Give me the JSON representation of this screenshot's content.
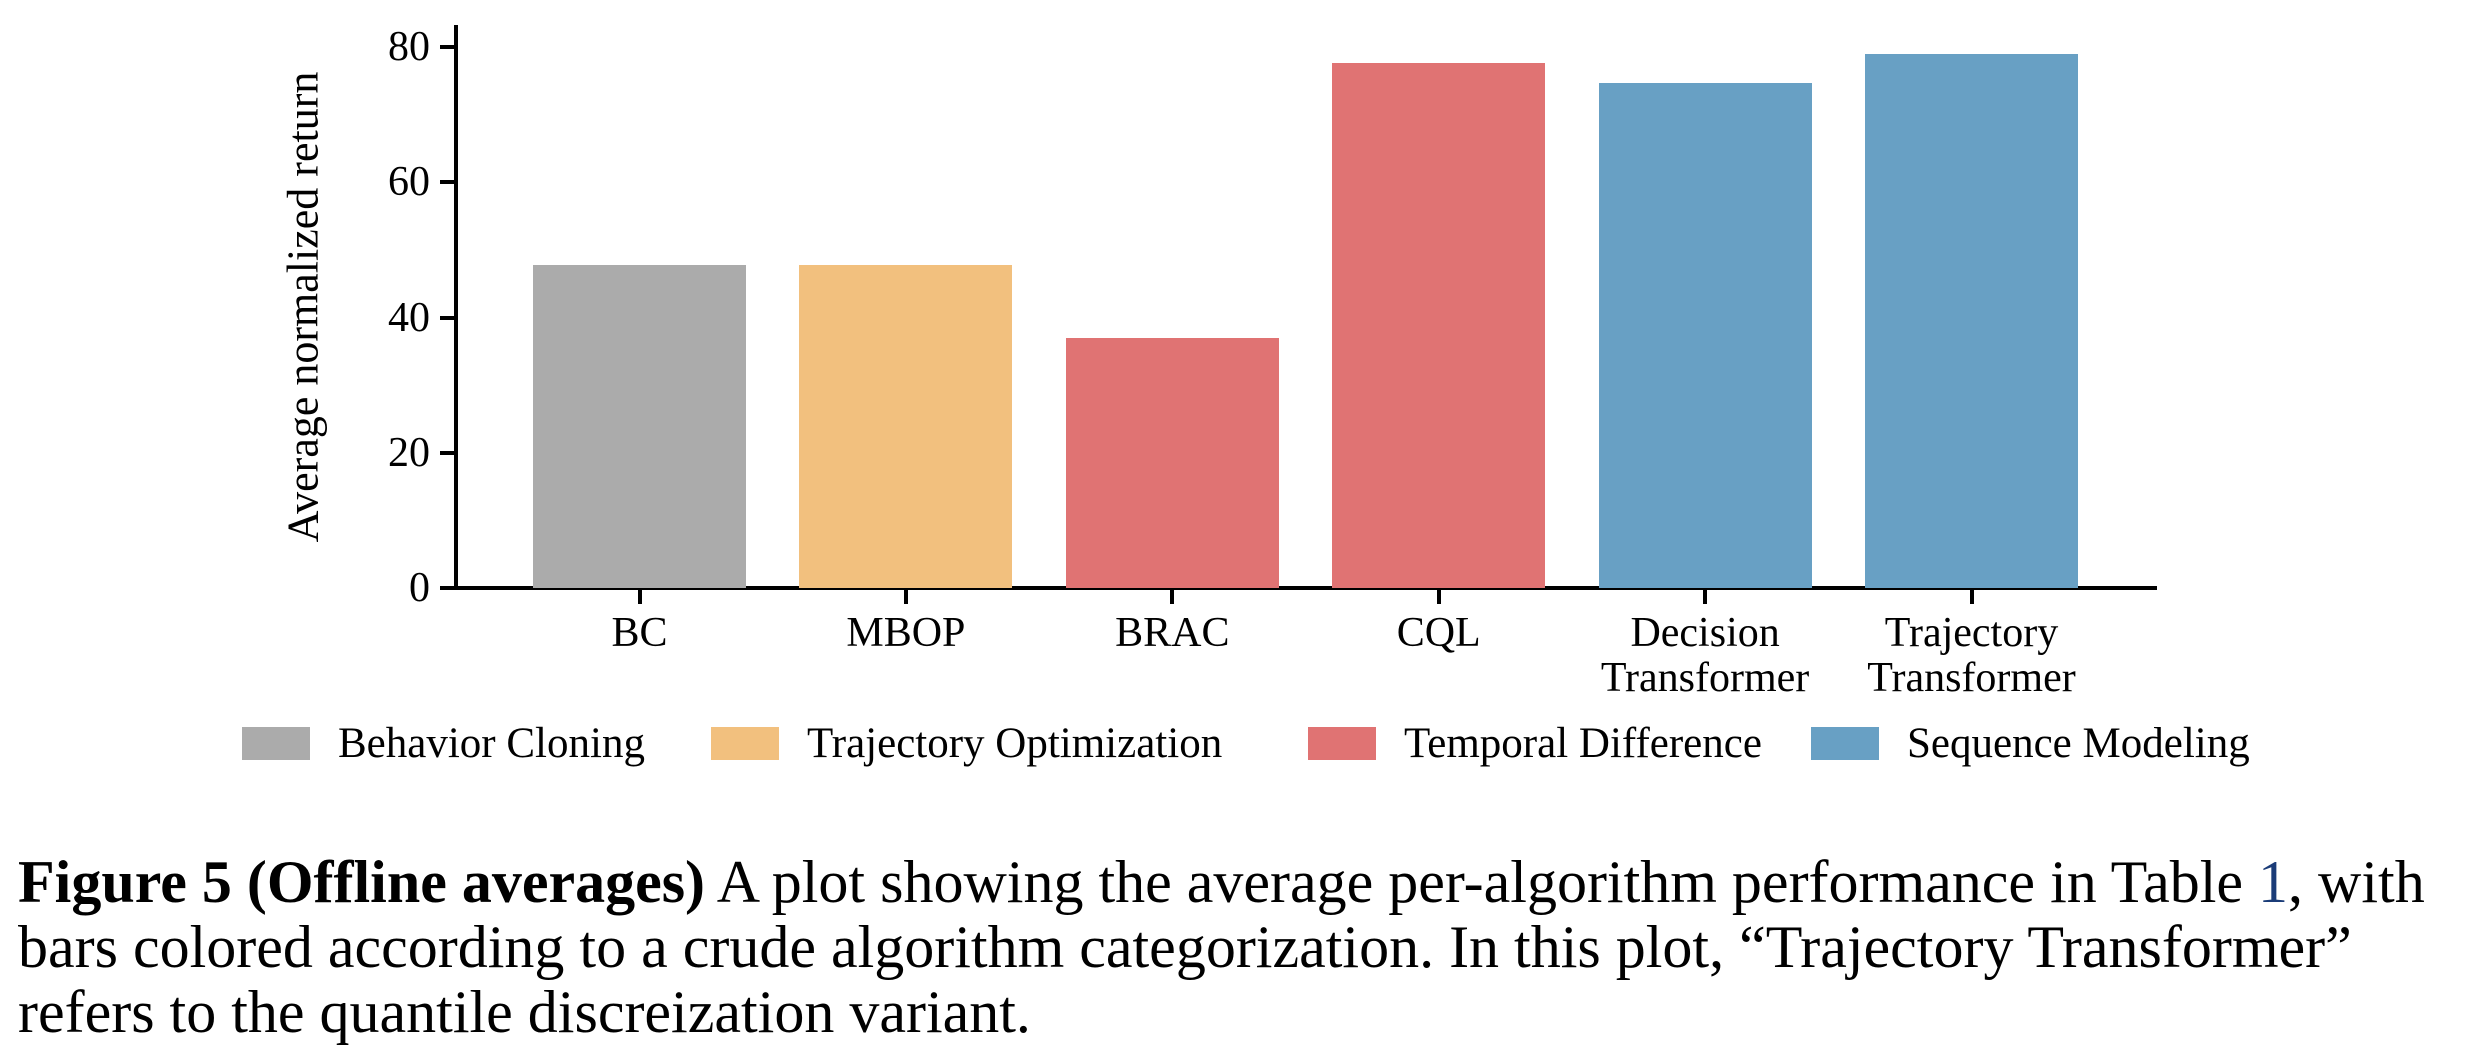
{
  "figure": {
    "caption": {
      "label_bold": "Figure 5 (Offline averages)",
      "line1_pre": " A plot showing the average per-algorithm performance in Table ",
      "line1_link": "1",
      "line1_post": ", with",
      "line2": "bars colored according to a crude algorithm categorization. In this plot, “Trajectory Transformer”",
      "line3": "refers to the quantile discreization variant.",
      "link_color": "#1b3c78",
      "text_color": "#000000"
    }
  },
  "chart_data": {
    "type": "bar",
    "title": "",
    "xlabel": "",
    "ylabel": "Average normalized return",
    "ylim": [
      0,
      80
    ],
    "yticks": [
      0,
      20,
      40,
      60,
      80
    ],
    "grid": false,
    "axis_color": "#000000",
    "background_color": "#ffffff",
    "categories": [
      "BC",
      "MBOP",
      "BRAC",
      "CQL",
      "Decision Transformer",
      "Trajectory Transformer"
    ],
    "category_label_lines": [
      [
        "BC"
      ],
      [
        "MBOP"
      ],
      [
        "BRAC"
      ],
      [
        "CQL"
      ],
      [
        "Decision",
        "Transformer"
      ],
      [
        "Trajectory",
        "Transformer"
      ]
    ],
    "values": [
      47.7,
      47.8,
      36.9,
      77.6,
      74.7,
      78.9
    ],
    "bar_groups": [
      "Behavior Cloning",
      "Trajectory Optimization",
      "Temporal Difference",
      "Temporal Difference",
      "Sequence Modeling",
      "Sequence Modeling"
    ],
    "group_colors": {
      "Behavior Cloning": "#ababab",
      "Trajectory Optimization": "#f2c07e",
      "Temporal Difference": "#e07373",
      "Sequence Modeling": "#68a0c4"
    },
    "legend_position": "bottom",
    "legend": [
      {
        "label": "Behavior Cloning",
        "group": "Behavior Cloning"
      },
      {
        "label": "Trajectory Optimization",
        "group": "Trajectory Optimization"
      },
      {
        "label": "Temporal Difference",
        "group": "Temporal Difference"
      },
      {
        "label": "Sequence Modeling",
        "group": "Sequence Modeling"
      }
    ]
  }
}
